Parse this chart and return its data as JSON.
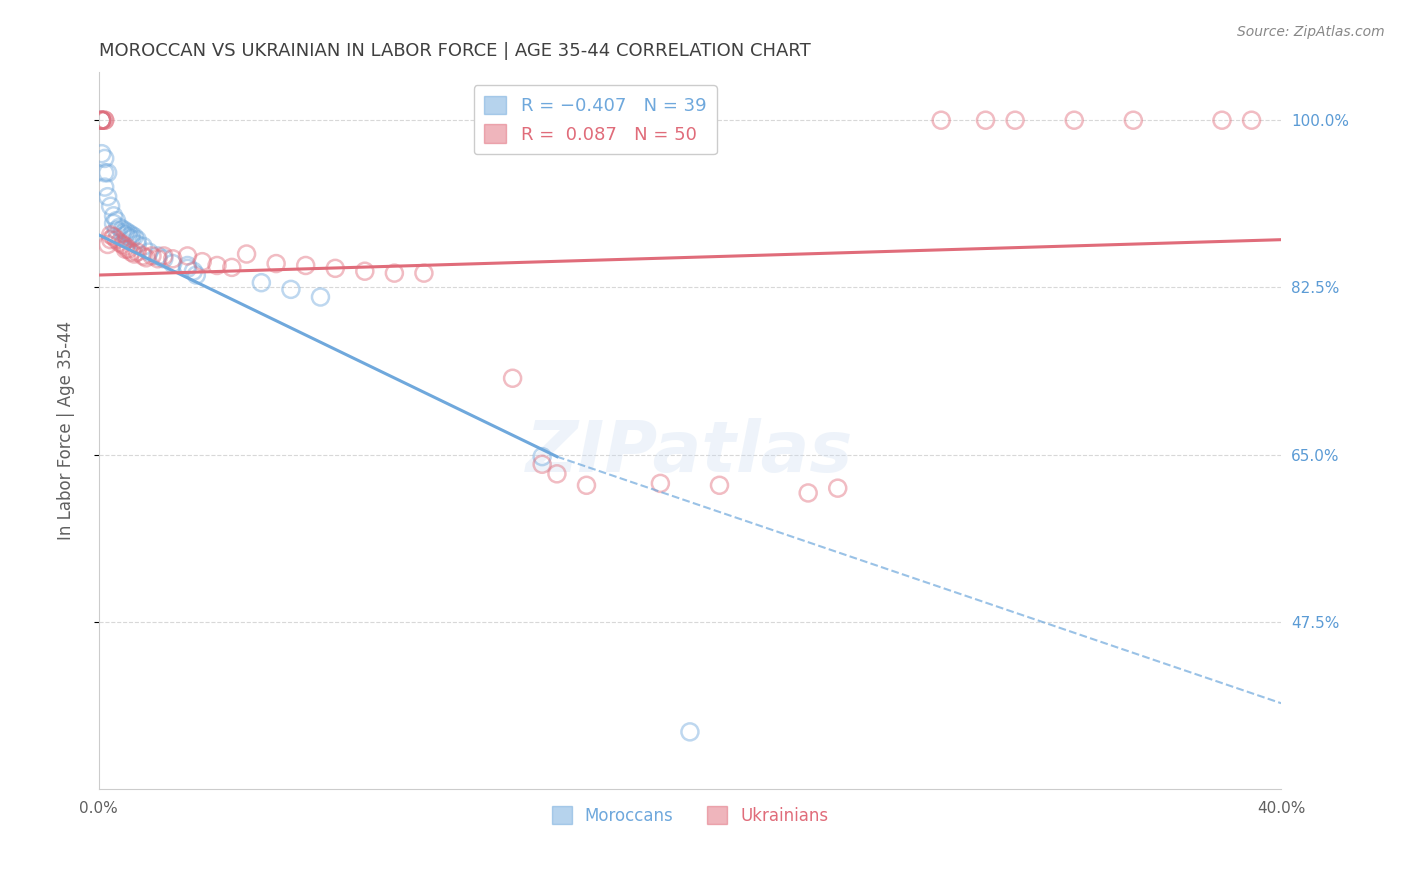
{
  "title": "MOROCCAN VS UKRAINIAN IN LABOR FORCE | AGE 35-44 CORRELATION CHART",
  "source": "Source: ZipAtlas.com",
  "ylabel": "In Labor Force | Age 35-44",
  "xlim": [
    0.0,
    0.4
  ],
  "ylim": [
    0.3,
    1.05
  ],
  "yticks": [
    0.475,
    0.65,
    0.825,
    1.0
  ],
  "ytick_labels": [
    "47.5%",
    "65.0%",
    "82.5%",
    "100.0%"
  ],
  "xticks": [
    0.0,
    0.05,
    0.1,
    0.15,
    0.2,
    0.25,
    0.3,
    0.35,
    0.4
  ],
  "xtick_labels": [
    "0.0%",
    "",
    "",
    "",
    "",
    "",
    "",
    "",
    "40.0%"
  ],
  "moroccan_color": "#6fa8dc",
  "ukrainian_color": "#e06c7a",
  "moroccan_scatter": [
    [
      0.001,
      1.0
    ],
    [
      0.001,
      0.965
    ],
    [
      0.002,
      0.96
    ],
    [
      0.002,
      0.945
    ],
    [
      0.002,
      0.93
    ],
    [
      0.003,
      0.945
    ],
    [
      0.003,
      0.92
    ],
    [
      0.004,
      0.91
    ],
    [
      0.005,
      0.9
    ],
    [
      0.005,
      0.892
    ],
    [
      0.006,
      0.895
    ],
    [
      0.006,
      0.885
    ],
    [
      0.007,
      0.888
    ],
    [
      0.008,
      0.886
    ],
    [
      0.008,
      0.882
    ],
    [
      0.009,
      0.884
    ],
    [
      0.009,
      0.88
    ],
    [
      0.01,
      0.882
    ],
    [
      0.01,
      0.878
    ],
    [
      0.011,
      0.88
    ],
    [
      0.011,
      0.876
    ],
    [
      0.012,
      0.878
    ],
    [
      0.013,
      0.875
    ],
    [
      0.013,
      0.87
    ],
    [
      0.015,
      0.868
    ],
    [
      0.017,
      0.862
    ],
    [
      0.02,
      0.858
    ],
    [
      0.022,
      0.855
    ],
    [
      0.025,
      0.85
    ],
    [
      0.03,
      0.848
    ],
    [
      0.03,
      0.845
    ],
    [
      0.032,
      0.842
    ],
    [
      0.033,
      0.838
    ],
    [
      0.055,
      0.83
    ],
    [
      0.065,
      0.823
    ],
    [
      0.075,
      0.815
    ],
    [
      0.15,
      0.648
    ],
    [
      0.2,
      0.36
    ]
  ],
  "ukrainian_scatter": [
    [
      0.001,
      1.0
    ],
    [
      0.001,
      1.0
    ],
    [
      0.001,
      1.0
    ],
    [
      0.001,
      1.0
    ],
    [
      0.002,
      1.0
    ],
    [
      0.002,
      1.0
    ],
    [
      0.003,
      0.87
    ],
    [
      0.004,
      0.88
    ],
    [
      0.004,
      0.875
    ],
    [
      0.005,
      0.878
    ],
    [
      0.006,
      0.875
    ],
    [
      0.007,
      0.872
    ],
    [
      0.008,
      0.87
    ],
    [
      0.009,
      0.868
    ],
    [
      0.009,
      0.865
    ],
    [
      0.01,
      0.865
    ],
    [
      0.011,
      0.862
    ],
    [
      0.012,
      0.86
    ],
    [
      0.013,
      0.862
    ],
    [
      0.015,
      0.858
    ],
    [
      0.016,
      0.856
    ],
    [
      0.018,
      0.858
    ],
    [
      0.02,
      0.855
    ],
    [
      0.022,
      0.858
    ],
    [
      0.025,
      0.855
    ],
    [
      0.03,
      0.858
    ],
    [
      0.035,
      0.852
    ],
    [
      0.04,
      0.848
    ],
    [
      0.045,
      0.846
    ],
    [
      0.05,
      0.86
    ],
    [
      0.06,
      0.85
    ],
    [
      0.07,
      0.848
    ],
    [
      0.08,
      0.845
    ],
    [
      0.09,
      0.842
    ],
    [
      0.1,
      0.84
    ],
    [
      0.11,
      0.84
    ],
    [
      0.14,
      0.73
    ],
    [
      0.15,
      0.64
    ],
    [
      0.155,
      0.63
    ],
    [
      0.165,
      0.618
    ],
    [
      0.19,
      0.62
    ],
    [
      0.21,
      0.618
    ],
    [
      0.24,
      0.61
    ],
    [
      0.25,
      0.615
    ],
    [
      0.285,
      1.0
    ],
    [
      0.3,
      1.0
    ],
    [
      0.31,
      1.0
    ],
    [
      0.33,
      1.0
    ],
    [
      0.35,
      1.0
    ],
    [
      0.38,
      1.0
    ],
    [
      0.39,
      1.0
    ]
  ],
  "moroccan_line": {
    "x0": 0.0,
    "y0": 0.88,
    "x1": 0.155,
    "y1": 0.648,
    "x1_dash": 0.4,
    "y1_dash": 0.39
  },
  "ukrainian_line": {
    "x0": 0.0,
    "y0": 0.838,
    "x1": 0.4,
    "y1": 0.875
  },
  "watermark": "ZIPatlas",
  "bg_color": "#ffffff",
  "grid_color": "#d8d8d8",
  "axis_color": "#cccccc",
  "title_color": "#404040",
  "label_color": "#606060",
  "right_axis_color": "#5b9bd5",
  "scatter_size": 150,
  "scatter_alpha": 0.45,
  "scatter_linewidth": 1.8
}
